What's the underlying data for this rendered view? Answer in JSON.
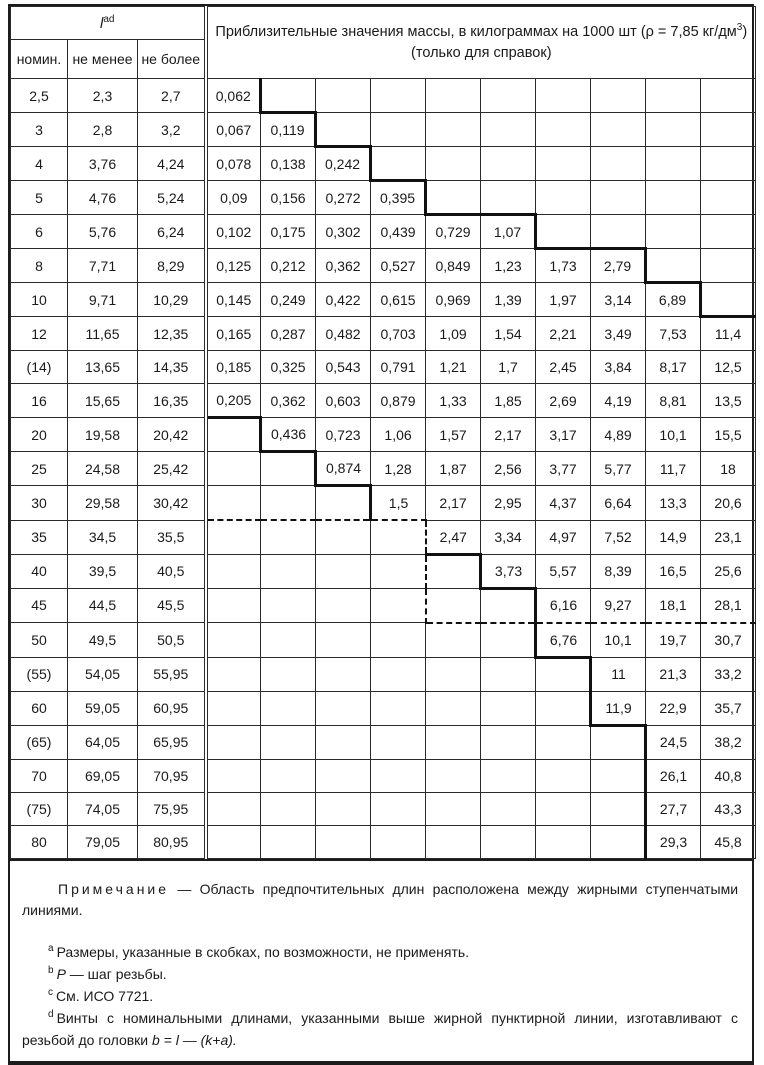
{
  "table": {
    "corner": {
      "symbol": "l",
      "sup": "ad"
    },
    "subheaders": [
      "номин.",
      "не менее",
      "не более"
    ],
    "mass_header": {
      "line1": "Приблизительные значения массы, в килограммах на 1000 шт (ρ = 7,85 кг/дм",
      "sup3": "3",
      "line1_close": ")",
      "line2": "(только для справок)"
    },
    "rows": [
      {
        "nominal": "2,5",
        "min": "2,3",
        "max": "2,7",
        "masses": [
          "0,062",
          null,
          null,
          null,
          null,
          null,
          null,
          null,
          null,
          null
        ]
      },
      {
        "nominal": "3",
        "min": "2,8",
        "max": "3,2",
        "masses": [
          "0,067",
          "0,119",
          null,
          null,
          null,
          null,
          null,
          null,
          null,
          null
        ]
      },
      {
        "nominal": "4",
        "min": "3,76",
        "max": "4,24",
        "masses": [
          "0,078",
          "0,138",
          "0,242",
          null,
          null,
          null,
          null,
          null,
          null,
          null
        ]
      },
      {
        "nominal": "5",
        "min": "4,76",
        "max": "5,24",
        "masses": [
          "0,09",
          "0,156",
          "0,272",
          "0,395",
          null,
          null,
          null,
          null,
          null,
          null
        ]
      },
      {
        "nominal": "6",
        "min": "5,76",
        "max": "6,24",
        "masses": [
          "0,102",
          "0,175",
          "0,302",
          "0,439",
          "0,729",
          "1,07",
          null,
          null,
          null,
          null
        ]
      },
      {
        "nominal": "8",
        "min": "7,71",
        "max": "8,29",
        "masses": [
          "0,125",
          "0,212",
          "0,362",
          "0,527",
          "0,849",
          "1,23",
          "1,73",
          "2,79",
          null,
          null
        ]
      },
      {
        "nominal": "10",
        "min": "9,71",
        "max": "10,29",
        "masses": [
          "0,145",
          "0,249",
          "0,422",
          "0,615",
          "0,969",
          "1,39",
          "1,97",
          "3,14",
          "6,89",
          null
        ]
      },
      {
        "nominal": "12",
        "min": "11,65",
        "max": "12,35",
        "masses": [
          "0,165",
          "0,287",
          "0,482",
          "0,703",
          "1,09",
          "1,54",
          "2,21",
          "3,49",
          "7,53",
          "11,4"
        ]
      },
      {
        "nominal": "(14)",
        "min": "13,65",
        "max": "14,35",
        "masses": [
          "0,185",
          "0,325",
          "0,543",
          "0,791",
          "1,21",
          "1,7",
          "2,45",
          "3,84",
          "8,17",
          "12,5"
        ]
      },
      {
        "nominal": "16",
        "min": "15,65",
        "max": "16,35",
        "masses": [
          "0,205",
          "0,362",
          "0,603",
          "0,879",
          "1,33",
          "1,85",
          "2,69",
          "4,19",
          "8,81",
          "13,5"
        ]
      },
      {
        "nominal": "20",
        "min": "19,58",
        "max": "20,42",
        "masses": [
          null,
          "0,436",
          "0,723",
          "1,06",
          "1,57",
          "2,17",
          "3,17",
          "4,89",
          "10,1",
          "15,5"
        ]
      },
      {
        "nominal": "25",
        "min": "24,58",
        "max": "25,42",
        "masses": [
          null,
          null,
          "0,874",
          "1,28",
          "1,87",
          "2,56",
          "3,77",
          "5,77",
          "11,7",
          "18"
        ]
      },
      {
        "nominal": "30",
        "min": "29,58",
        "max": "30,42",
        "masses": [
          null,
          null,
          null,
          "1,5",
          "2,17",
          "2,95",
          "4,37",
          "6,64",
          "13,3",
          "20,6"
        ]
      },
      {
        "nominal": "35",
        "min": "34,5",
        "max": "35,5",
        "masses": [
          null,
          null,
          null,
          null,
          "2,47",
          "3,34",
          "4,97",
          "7,52",
          "14,9",
          "23,1"
        ]
      },
      {
        "nominal": "40",
        "min": "39,5",
        "max": "40,5",
        "masses": [
          null,
          null,
          null,
          null,
          null,
          "3,73",
          "5,57",
          "8,39",
          "16,5",
          "25,6"
        ]
      },
      {
        "nominal": "45",
        "min": "44,5",
        "max": "45,5",
        "masses": [
          null,
          null,
          null,
          null,
          null,
          null,
          "6,16",
          "9,27",
          "18,1",
          "28,1"
        ]
      },
      {
        "nominal": "50",
        "min": "49,5",
        "max": "50,5",
        "masses": [
          null,
          null,
          null,
          null,
          null,
          null,
          "6,76",
          "10,1",
          "19,7",
          "30,7"
        ]
      },
      {
        "nominal": "(55)",
        "min": "54,05",
        "max": "55,95",
        "masses": [
          null,
          null,
          null,
          null,
          null,
          null,
          null,
          "11",
          "21,3",
          "33,2"
        ]
      },
      {
        "nominal": "60",
        "min": "59,05",
        "max": "60,95",
        "masses": [
          null,
          null,
          null,
          null,
          null,
          null,
          null,
          "11,9",
          "22,9",
          "35,7"
        ]
      },
      {
        "nominal": "(65)",
        "min": "64,05",
        "max": "65,95",
        "masses": [
          null,
          null,
          null,
          null,
          null,
          null,
          null,
          null,
          "24,5",
          "38,2"
        ]
      },
      {
        "nominal": "70",
        "min": "69,05",
        "max": "70,95",
        "masses": [
          null,
          null,
          null,
          null,
          null,
          null,
          null,
          null,
          "26,1",
          "40,8"
        ]
      },
      {
        "nominal": "(75)",
        "min": "74,05",
        "max": "75,95",
        "masses": [
          null,
          null,
          null,
          null,
          null,
          null,
          null,
          null,
          "27,7",
          "43,3"
        ]
      },
      {
        "nominal": "80",
        "min": "79,05",
        "max": "80,95",
        "masses": [
          null,
          null,
          null,
          null,
          null,
          null,
          null,
          null,
          "29,3",
          "45,8"
        ]
      }
    ],
    "borders": {
      "bold_right": [
        [
          0,
          1
        ],
        [
          1,
          2
        ],
        [
          2,
          3
        ],
        [
          3,
          4
        ],
        [
          4,
          6
        ],
        [
          5,
          8
        ],
        [
          6,
          9
        ],
        [
          10,
          1
        ],
        [
          11,
          2
        ],
        [
          12,
          3
        ],
        [
          14,
          5
        ],
        [
          15,
          6
        ],
        [
          16,
          6
        ],
        [
          17,
          7
        ],
        [
          18,
          7
        ],
        [
          19,
          8
        ],
        [
          20,
          8
        ],
        [
          21,
          8
        ],
        [
          22,
          8
        ]
      ],
      "bold_bottom": [
        [
          0,
          2
        ],
        [
          1,
          3
        ],
        [
          2,
          4
        ],
        [
          3,
          5
        ],
        [
          3,
          6
        ],
        [
          4,
          7
        ],
        [
          4,
          8
        ],
        [
          5,
          9
        ],
        [
          6,
          10
        ],
        [
          9,
          1
        ],
        [
          10,
          2
        ],
        [
          11,
          3
        ],
        [
          13,
          5
        ],
        [
          14,
          6
        ],
        [
          16,
          7
        ],
        [
          18,
          8
        ]
      ],
      "dashed_bottom": [
        [
          12,
          1
        ],
        [
          12,
          2
        ],
        [
          12,
          3
        ],
        [
          12,
          4
        ],
        [
          15,
          5
        ],
        [
          15,
          6
        ],
        [
          15,
          7
        ],
        [
          15,
          8
        ],
        [
          15,
          9
        ],
        [
          15,
          10
        ]
      ],
      "dashed_right": [
        [
          13,
          4
        ],
        [
          14,
          4
        ],
        [
          15,
          4
        ]
      ]
    }
  },
  "notes": {
    "title": "Примечание",
    "dash": "—",
    "body": "Область предпочтительных длин расположена между жирными ступенчатыми линиями.",
    "footnotes": [
      {
        "sup": "a",
        "italic_lead": "",
        "text": "Размеры, указанные в скобках, по возможности, не применять.",
        "formula": ""
      },
      {
        "sup": "b",
        "italic_lead": "P",
        "text": " — шаг резьбы.",
        "formula": ""
      },
      {
        "sup": "c",
        "italic_lead": "",
        "text": "См. ИСО 7721.",
        "formula": ""
      },
      {
        "sup": "d",
        "italic_lead": "",
        "text": "Винты с номинальными длинами, указанными выше жирной пунктирной линии, изготавливают с резьбой до головки ",
        "formula": "b = l — (k+a)."
      }
    ]
  }
}
